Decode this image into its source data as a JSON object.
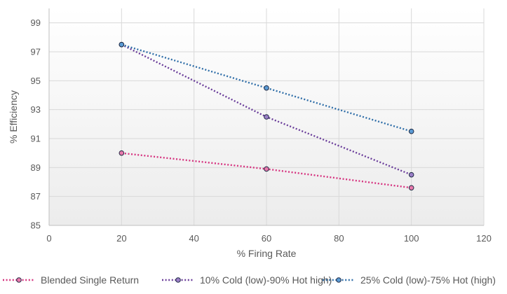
{
  "chart_data": {
    "type": "line",
    "title": "",
    "xlabel": "% Firing Rate",
    "ylabel": "% Efficiency",
    "xlim": [
      0,
      120
    ],
    "ylim": [
      85,
      100
    ],
    "x_ticks": [
      0,
      20,
      40,
      60,
      80,
      100,
      120
    ],
    "y_ticks": [
      85,
      87,
      89,
      91,
      93,
      95,
      97,
      99
    ],
    "grid": true,
    "legend_position": "bottom",
    "line_style": "dotted",
    "marker": "circle",
    "series": [
      {
        "name": "Blended Single Return",
        "color": "#d6337f",
        "marker_fill": "#e879ab",
        "x": [
          20,
          60,
          100
        ],
        "y": [
          90.0,
          88.9,
          87.6
        ]
      },
      {
        "name": "10% Cold (low)-90% Hot high)",
        "color": "#6a3d9a",
        "marker_fill": "#9b7fc7",
        "x": [
          20,
          60,
          100
        ],
        "y": [
          97.5,
          92.5,
          88.5
        ]
      },
      {
        "name": "25% Cold (low)-75% Hot (high)",
        "color": "#2f6ea8",
        "marker_fill": "#5b9bd5",
        "x": [
          20,
          60,
          100
        ],
        "y": [
          97.5,
          94.5,
          91.5
        ]
      }
    ]
  }
}
